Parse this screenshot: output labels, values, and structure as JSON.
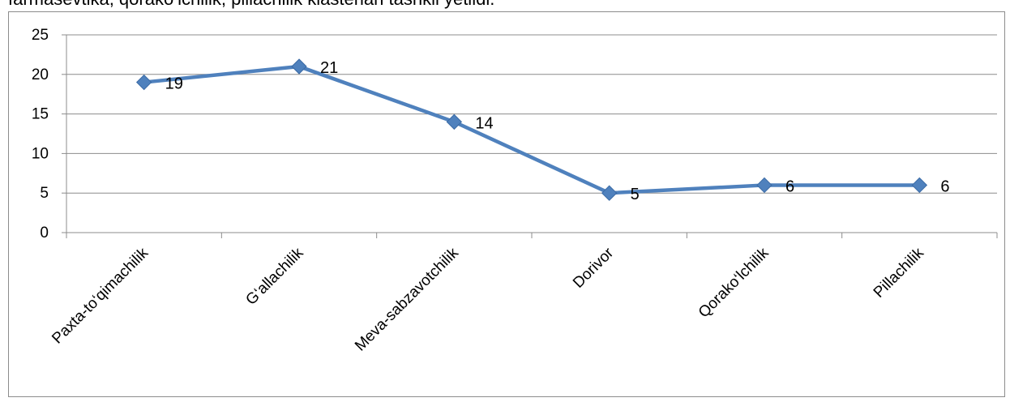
{
  "header": {
    "partial_text": "farmasevtika, qorako‘lchilik, pillachilik klasterlari tashkil yetildi."
  },
  "chart_data": {
    "type": "line",
    "title": "",
    "xlabel": "",
    "ylabel": "",
    "categories": [
      "Paxta-to‘qimachilik",
      "G‘allachilik",
      "Meva-sabzavotchilik",
      "Dorivor",
      "Qorako‘lchilik",
      "Pillachilik"
    ],
    "series": [
      {
        "values": [
          19,
          21,
          14,
          5,
          6,
          6
        ],
        "color": "#4f81bd"
      }
    ],
    "ylim": [
      0,
      25
    ],
    "yticks": [
      "0",
      "5",
      "10",
      "15",
      "20",
      "25"
    ],
    "grid": true,
    "legend": "none",
    "data_labels": true
  }
}
